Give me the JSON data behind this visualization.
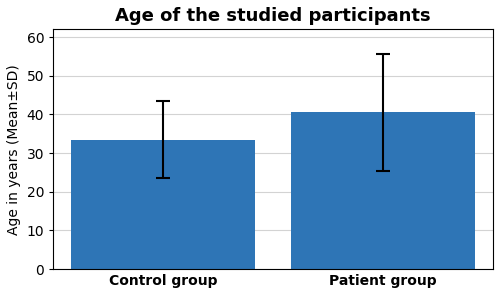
{
  "title": "Age of the studied participants",
  "categories": [
    "Control group",
    "Patient group"
  ],
  "values": [
    33.5,
    40.5
  ],
  "errors": [
    10.0,
    15.0
  ],
  "bar_color": "#2E75B6",
  "ylabel": "Age in years (Mean±SD)",
  "ylim": [
    0,
    62
  ],
  "yticks": [
    0,
    10,
    20,
    30,
    40,
    50,
    60
  ],
  "title_fontsize": 13,
  "label_fontsize": 10,
  "tick_fontsize": 10,
  "bar_width": 0.5,
  "error_capsize": 5,
  "error_linewidth": 1.5,
  "x_positions": [
    0.3,
    0.9
  ]
}
